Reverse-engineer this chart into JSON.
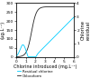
{
  "xlabel": "Chlorine introduced (mg.L⁻¹)",
  "ylabel_left": "Chloroform\n(μg.L⁻¹)",
  "ylabel_right": "Chlorine\nresidual\n(mg.L⁻¹)",
  "xlim": [
    0,
    6
  ],
  "ylim_left": [
    0,
    300
  ],
  "ylim_right": [
    0,
    4
  ],
  "yticks_left": [
    0,
    50,
    100,
    150,
    200,
    250,
    300
  ],
  "yticks_right": [
    0,
    1,
    2,
    3,
    4
  ],
  "xticks": [
    0,
    1,
    2,
    3,
    4,
    5,
    6
  ],
  "chloroform_color": "#222222",
  "residual_color": "#00ccff",
  "legend_chloroform": "Chloroform",
  "legend_residual": "Residual chlorine",
  "background_color": "#ffffff",
  "fontsize": 3.8,
  "tick_fontsize": 3.2,
  "linewidth": 0.6
}
